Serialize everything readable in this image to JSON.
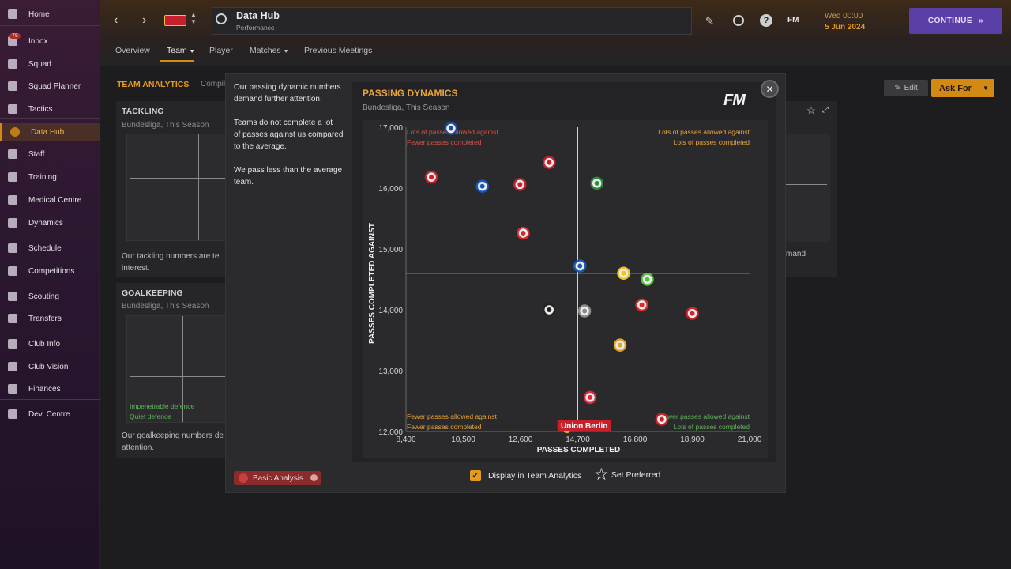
{
  "sidebar": {
    "items": [
      {
        "label": "Home",
        "icon": "home-icon"
      },
      {
        "label": "Inbox",
        "icon": "inbox-icon",
        "badge": "78"
      },
      {
        "label": "Squad",
        "icon": "squad-icon"
      },
      {
        "label": "Squad Planner",
        "icon": "squad-planner-icon"
      },
      {
        "label": "Tactics",
        "icon": "tactics-icon"
      },
      {
        "label": "Data Hub",
        "icon": "data-hub-icon"
      },
      {
        "label": "Staff",
        "icon": "staff-icon"
      },
      {
        "label": "Training",
        "icon": "training-icon"
      },
      {
        "label": "Medical Centre",
        "icon": "medical-icon"
      },
      {
        "label": "Dynamics",
        "icon": "dynamics-icon"
      },
      {
        "label": "Schedule",
        "icon": "schedule-icon"
      },
      {
        "label": "Competitions",
        "icon": "trophy-icon"
      },
      {
        "label": "Scouting",
        "icon": "scouting-icon"
      },
      {
        "label": "Transfers",
        "icon": "transfers-icon"
      },
      {
        "label": "Club Info",
        "icon": "club-info-icon"
      },
      {
        "label": "Club Vision",
        "icon": "club-vision-icon"
      },
      {
        "label": "Finances",
        "icon": "finances-icon"
      },
      {
        "label": "Dev. Centre",
        "icon": "dev-centre-icon"
      }
    ]
  },
  "header": {
    "title": "Data Hub",
    "subtitle": "Performance",
    "date_time": "Wed 00:00",
    "date": "5 Jun 2024",
    "continue_label": "CONTINUE",
    "fm_label": "FM",
    "help_label": "?",
    "tabs": [
      "Overview",
      "Team",
      "Player",
      "Matches",
      "Previous Meetings"
    ]
  },
  "background": {
    "section_title": "TEAM ANALYTICS",
    "section_sub": "Compil",
    "edit_label": "Edit",
    "ask_for_label": "Ask For",
    "tackling": {
      "title": "TACKLING",
      "sub": "Bundesliga, This Season",
      "text": "Our tackling numbers are te",
      "text2": "interest."
    },
    "goalkeeping": {
      "title": "GOALKEEPING",
      "sub": "Bundesliga, This Season",
      "text": "Our goalkeeping numbers de",
      "text2": "attention.",
      "label1": "Impenetrable defence",
      "label2": "Quiet defence"
    },
    "right_text": "mand"
  },
  "modal": {
    "text_lines": [
      "Our passing dynamic numbers",
      "demand further attention.",
      "",
      "Teams do not complete a lot",
      "of passes against us compared",
      "to the average.",
      "",
      "We pass less than the average",
      "team."
    ],
    "basic_analysis_label": "Basic Analysis",
    "display_label": "Display in Team Analytics",
    "set_preferred_label": "Set Preferred",
    "fm_logo": "FM"
  },
  "chart_data": {
    "type": "scatter",
    "title": "PASSING DYNAMICS",
    "subtitle": "Bundesliga, This Season",
    "xlabel": "PASSES COMPLETED",
    "ylabel": "PASSES COMPLETED AGAINST",
    "xlim": [
      8400,
      21000
    ],
    "ylim": [
      12000,
      17000
    ],
    "xticks": [
      "8,400",
      "10,500",
      "12,600",
      "14,700",
      "16,800",
      "18,900",
      "21,000"
    ],
    "yticks": [
      "12,000",
      "13,000",
      "14,000",
      "15,000",
      "16,000",
      "17,000"
    ],
    "x_avg": 14700,
    "y_avg": 14600,
    "quadrant_labels": {
      "top_left": [
        "Lots of passes allowed against",
        "Fewer passes completed"
      ],
      "top_right": [
        "Lots of passes allowed against",
        "Lots of passes completed"
      ],
      "bottom_left": [
        "Fewer passes allowed against",
        "Fewer passes completed"
      ],
      "bottom_right": [
        "Fewer passes allowed against",
        "Lots of passes completed"
      ]
    },
    "highlight_label": "Union Berlin",
    "colors": {
      "top_left": "#d9534a",
      "top_right": "#e8a33a",
      "bottom_left": "#e8a33a",
      "bottom_right": "#5fb35a",
      "highlight": "#c8202a",
      "accent": "#e8a33a"
    },
    "points": [
      {
        "x": 10050,
        "y": 16980,
        "color": "#1f4aa8"
      },
      {
        "x": 9330,
        "y": 16180,
        "color": "#c8202a"
      },
      {
        "x": 11200,
        "y": 16030,
        "color": "#1a58b8"
      },
      {
        "x": 12580,
        "y": 16060,
        "color": "#c8202a"
      },
      {
        "x": 13650,
        "y": 16420,
        "color": "#c8202a"
      },
      {
        "x": 15400,
        "y": 16080,
        "color": "#2f8a3e"
      },
      {
        "x": 12700,
        "y": 15260,
        "color": "#d12a2a"
      },
      {
        "x": 14780,
        "y": 14720,
        "color": "#1a5bb5"
      },
      {
        "x": 16380,
        "y": 14600,
        "color": "#f0c419"
      },
      {
        "x": 17250,
        "y": 14500,
        "color": "#5dbb46"
      },
      {
        "x": 13650,
        "y": 14000,
        "color": "#222222"
      },
      {
        "x": 14950,
        "y": 13980,
        "color": "#8a8a8a"
      },
      {
        "x": 17050,
        "y": 14080,
        "color": "#d92b2b"
      },
      {
        "x": 18900,
        "y": 13940,
        "color": "#d0202a"
      },
      {
        "x": 16250,
        "y": 13420,
        "color": "#e0a52a"
      },
      {
        "x": 15150,
        "y": 12560,
        "color": "#dd2b3b"
      },
      {
        "x": 17780,
        "y": 12200,
        "color": "#d0202a"
      },
      {
        "x": 14300,
        "y": 12040,
        "color": "#e8a33a"
      }
    ]
  }
}
